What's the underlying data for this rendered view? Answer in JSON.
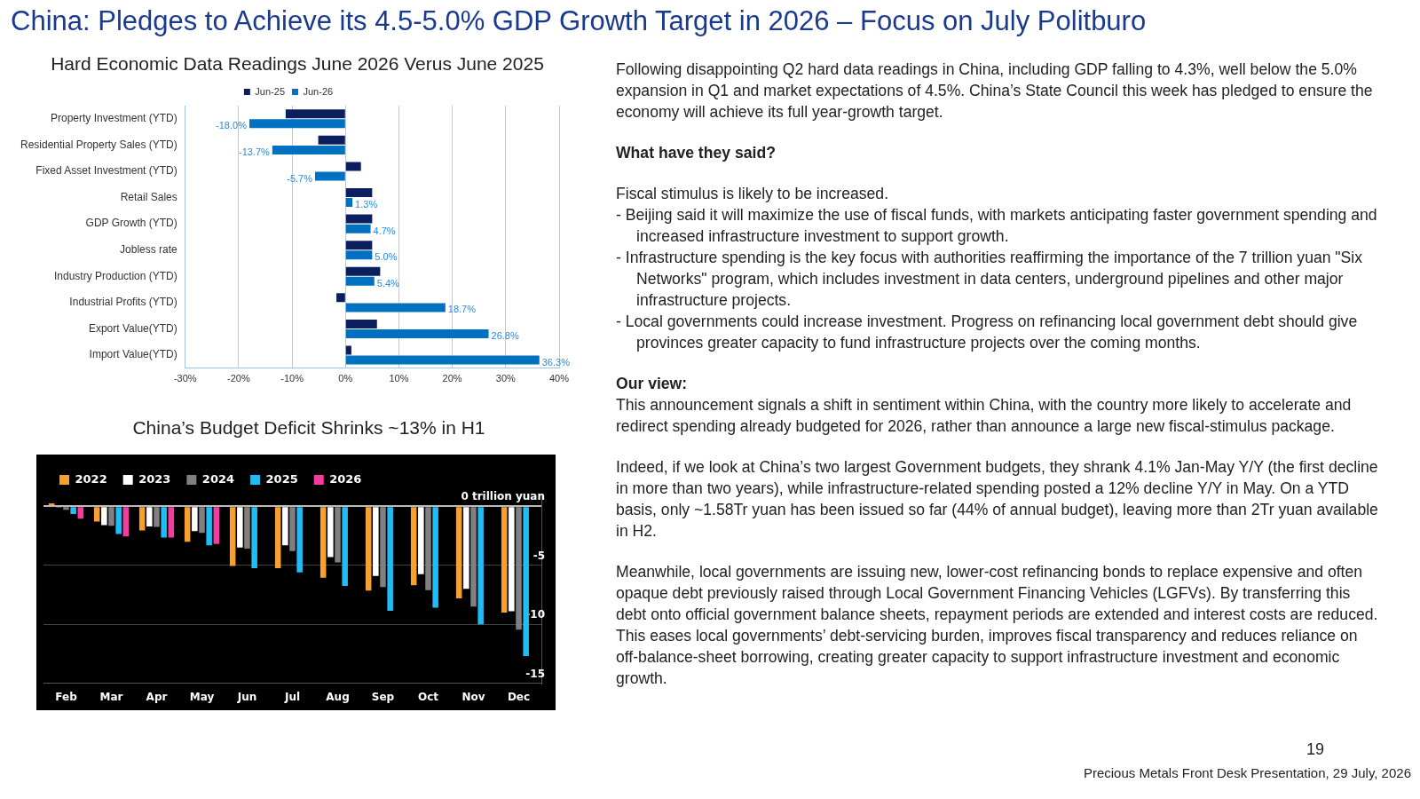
{
  "chart_data": [
    {
      "type": "bar",
      "title": "Hard Economic Data Readings June 2026 Verus June 2025",
      "orientation": "horizontal",
      "categories": [
        "Property Investment (YTD)",
        "Residential Property Sales (YTD)",
        "Fixed Asset Investment (YTD)",
        "Retail Sales",
        "GDP Growth (YTD)",
        "Jobless rate",
        "Industry Production (YTD)",
        "Industrial Profits (YTD)",
        "Export Value(YTD)",
        "Import Value(YTD)"
      ],
      "series": [
        {
          "name": "Jun-25",
          "color": "#0b1f5e",
          "values": [
            -11.2,
            -5.1,
            2.9,
            5.0,
            5.0,
            5.0,
            6.5,
            -1.7,
            5.9,
            1.1
          ]
        },
        {
          "name": "Jun-26",
          "color": "#0070c0",
          "values": [
            -18.0,
            -13.7,
            -5.7,
            1.3,
            4.7,
            5.0,
            5.4,
            18.7,
            26.8,
            36.3
          ],
          "value_labels": [
            "-18.0%",
            "-13.7%",
            "-5.7%",
            "1.3%",
            "4.7%",
            "5.0%",
            "5.4%",
            "18.7%",
            "26.8%",
            "36.3%"
          ]
        }
      ],
      "xlim": [
        -30,
        40
      ],
      "xticks": [
        {
          "value": -30,
          "label": "-30%"
        },
        {
          "value": -20,
          "label": "-20%"
        },
        {
          "value": -10,
          "label": "-10%"
        },
        {
          "value": 0,
          "label": "0%"
        },
        {
          "value": 10,
          "label": "10%"
        },
        {
          "value": 20,
          "label": "20%"
        },
        {
          "value": 30,
          "label": "30%"
        },
        {
          "value": 40,
          "label": "40%"
        }
      ],
      "grid": "x",
      "legend": "top"
    },
    {
      "type": "bar",
      "title": "China’s Budget Deficit Shrinks ~13% in H1",
      "categories": [
        "Feb",
        "Mar",
        "Apr",
        "May",
        "Jun",
        "Jul",
        "Aug",
        "Sep",
        "Oct",
        "Nov",
        "Dec"
      ],
      "series": [
        {
          "name": "2022",
          "color": "#f7a030",
          "values": [
            0.25,
            -1.3,
            -2.05,
            -3.0,
            -5.05,
            -5.25,
            -6.05,
            -7.15,
            -6.7,
            -7.8,
            -9.0
          ]
        },
        {
          "name": "2023",
          "color": "#ffffff",
          "values": [
            -0.1,
            -1.6,
            -1.7,
            -2.1,
            -3.5,
            -3.3,
            -4.3,
            -5.9,
            -5.75,
            -7.0,
            -8.9
          ]
        },
        {
          "name": "2024",
          "color": "#808080",
          "values": [
            -0.3,
            -1.65,
            -1.75,
            -2.25,
            -3.6,
            -3.8,
            -4.75,
            -6.85,
            -7.1,
            -8.5,
            -10.45
          ]
        },
        {
          "name": "2025",
          "color": "#1fbcf5",
          "values": [
            -0.65,
            -2.35,
            -2.65,
            -3.3,
            -5.25,
            -5.6,
            -6.75,
            -8.85,
            -8.6,
            -10.0,
            -12.7
          ]
        },
        {
          "name": "2026",
          "color": "#f23ca0",
          "values": [
            -1.05,
            -2.55,
            -2.65,
            -3.2,
            null,
            null,
            null,
            null,
            null,
            null,
            null
          ]
        }
      ],
      "ylim": [
        -15,
        1
      ],
      "yticks": [
        {
          "value": 0,
          "label": "0 trillion yuan"
        },
        -5,
        -10,
        -15
      ],
      "grid": "y",
      "legend": "top left"
    },
    {
      "type": "other",
      "title": "China: Pledges to Achieve its 4.5-5.0% GDP Growth Target in 2026 – Focus on July Politburo",
      "annotations": [
        "Following disappointing Q2 hard data readings in China, including GDP falling to 4.3%, well below the 5.0% expansion in Q1 and market expectations of 4.5%. China’s State Council this week has pledged to ensure the economy will achieve its full year-growth target.",
        "What have they said?",
        "Fiscal stimulus is likely to be increased.",
        "- Beijing said it will maximize the use of fiscal funds, with markets anticipating faster government spending and increased infrastructure investment to support growth.",
        "- Infrastructure spending is the key focus with authorities reaffirming the importance of the 7 trillion yuan \"Six Networks\" program, which includes investment in data centers, underground pipelines and other major infrastructure projects.",
        "- Local governments could increase investment. Progress on refinancing local government debt should give provinces greater capacity to fund infrastructure projects over the coming months.",
        "Our view:",
        "This announcement signals a shift in sentiment within China, with the country more likely to accelerate and redirect spending already budgeted for 2026, rather than announce a large new fiscal-stimulus package.",
        "Indeed, if we look at China’s two largest Government budgets, they shrank 4.1% Jan-May Y/Y (the first decline in more than two years), while infrastructure-related spending posted a 12% decline Y/Y in May. On a YTD basis, only ~1.58Tr yuan has been issued so far (44% of annual budget), leaving more than 2Tr yuan available in H2.",
        "Meanwhile, local governments are issuing new, lower-cost refinancing bonds to replace expensive and often opaque debt previously raised through Local Government Financing Vehicles (LGFVs). By transferring this debt onto official government balance sheets, repayment periods are extended and interest costs are reduced. This eases local governments’ debt-servicing burden, improves fiscal transparency and reduces reliance on off-balance-sheet borrowing, creating greater capacity to support infrastructure investment and economic growth.",
        "19",
        "Precious Metals Front Desk Presentation, 29 July, 2026"
      ]
    }
  ]
}
